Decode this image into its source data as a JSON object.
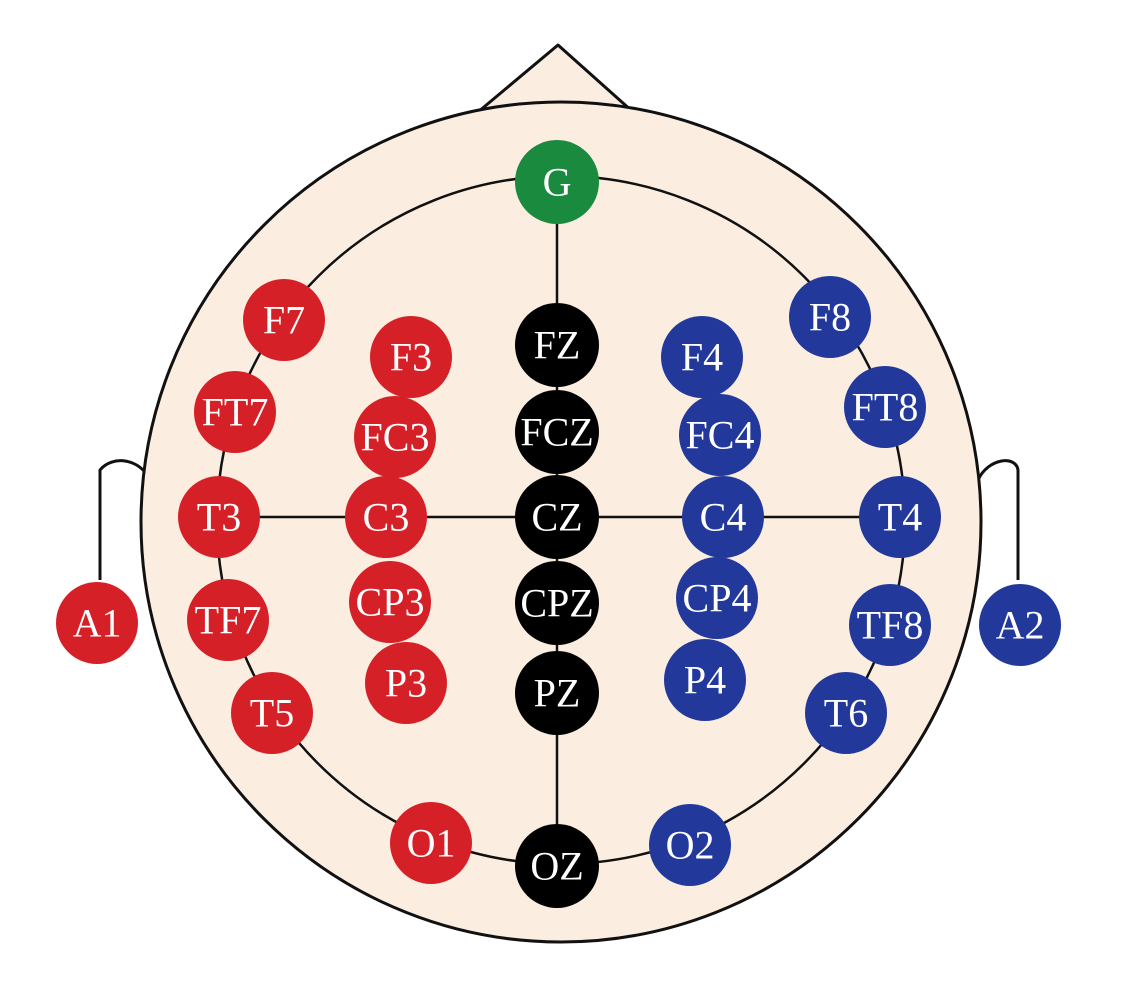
{
  "colors": {
    "skin": "#fbeee1",
    "outline": "#111111",
    "left": "#d62027",
    "right": "#22399b",
    "midline": "#000000",
    "ground": "#1a8a3e",
    "label": "#ffffff"
  },
  "electrodes": [
    {
      "id": "g",
      "label": "G",
      "group": "ground"
    },
    {
      "id": "f7",
      "label": "F7",
      "group": "left"
    },
    {
      "id": "f3",
      "label": "F3",
      "group": "left"
    },
    {
      "id": "fz",
      "label": "FZ",
      "group": "midline"
    },
    {
      "id": "f4",
      "label": "F4",
      "group": "right"
    },
    {
      "id": "f8",
      "label": "F8",
      "group": "right"
    },
    {
      "id": "ft7",
      "label": "FT7",
      "group": "left"
    },
    {
      "id": "fc3",
      "label": "FC3",
      "group": "left"
    },
    {
      "id": "fcz",
      "label": "FCZ",
      "group": "midline"
    },
    {
      "id": "fc4",
      "label": "FC4",
      "group": "right"
    },
    {
      "id": "ft8",
      "label": "FT8",
      "group": "right"
    },
    {
      "id": "t3",
      "label": "T3",
      "group": "left"
    },
    {
      "id": "c3",
      "label": "C3",
      "group": "left"
    },
    {
      "id": "cz",
      "label": "CZ",
      "group": "midline"
    },
    {
      "id": "c4",
      "label": "C4",
      "group": "right"
    },
    {
      "id": "t4",
      "label": "T4",
      "group": "right"
    },
    {
      "id": "a1",
      "label": "A1",
      "group": "left"
    },
    {
      "id": "tf7",
      "label": "TF7",
      "group": "left"
    },
    {
      "id": "cp3",
      "label": "CP3",
      "group": "left"
    },
    {
      "id": "cpz",
      "label": "CPZ",
      "group": "midline"
    },
    {
      "id": "cp4",
      "label": "CP4",
      "group": "right"
    },
    {
      "id": "tf8",
      "label": "TF8",
      "group": "right"
    },
    {
      "id": "a2",
      "label": "A2",
      "group": "right"
    },
    {
      "id": "p3",
      "label": "P3",
      "group": "left"
    },
    {
      "id": "pz",
      "label": "PZ",
      "group": "midline"
    },
    {
      "id": "p4",
      "label": "P4",
      "group": "right"
    },
    {
      "id": "t5",
      "label": "T5",
      "group": "left"
    },
    {
      "id": "t6",
      "label": "T6",
      "group": "right"
    },
    {
      "id": "o1",
      "label": "O1",
      "group": "left"
    },
    {
      "id": "oz",
      "label": "OZ",
      "group": "midline"
    },
    {
      "id": "o2",
      "label": "O2",
      "group": "right"
    }
  ]
}
